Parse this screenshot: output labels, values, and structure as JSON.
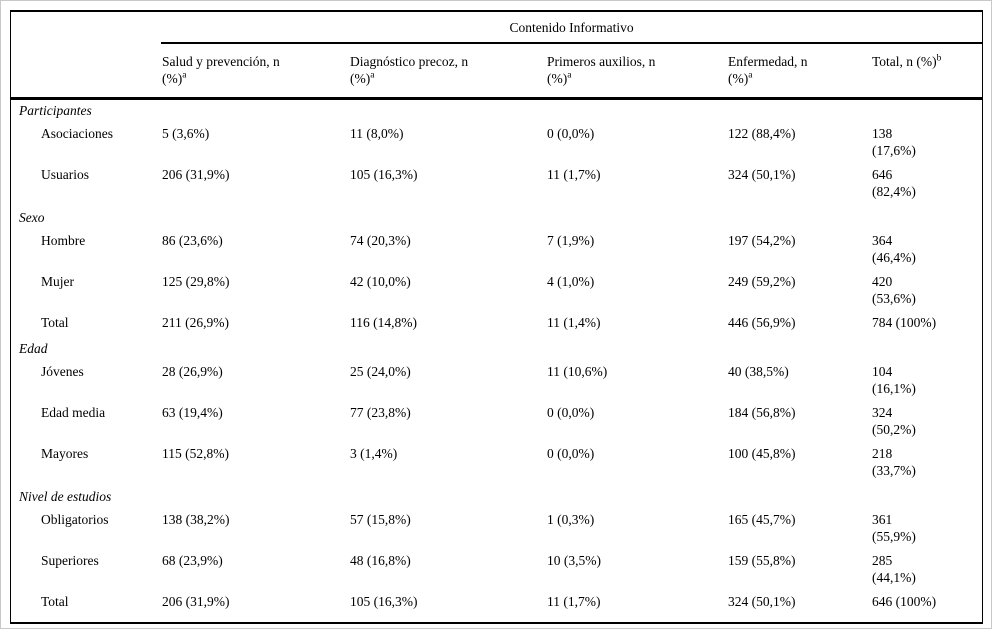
{
  "colors": {
    "text": "#000000",
    "background": "#ffffff",
    "rule": "#000000"
  },
  "table": {
    "spanner": "Contenido Informativo",
    "row_header_column": "",
    "columns": [
      {
        "line1": "Salud y prevención, n",
        "line2": "(%)",
        "sup": "a"
      },
      {
        "line1": "Diagnóstico precoz, n",
        "line2": "(%)",
        "sup": "a"
      },
      {
        "line1": "Primeros auxilios, n",
        "line2": "(%)",
        "sup": "a"
      },
      {
        "line1": "Enfermedad, n",
        "line2": "(%)",
        "sup": "a"
      },
      {
        "line1": "Total, n (%)",
        "line2": "",
        "sup": "b"
      }
    ],
    "sections": [
      {
        "title": "Participantes",
        "rows": [
          {
            "label": "Asociaciones",
            "values": [
              "5 (3,6%)",
              "11 (8,0%)",
              "0 (0,0%)",
              "122 (88,4%)"
            ],
            "total": "138\n(17,6%)"
          },
          {
            "label": "Usuarios",
            "values": [
              "206 (31,9%)",
              "105 (16,3%)",
              "11 (1,7%)",
              "324 (50,1%)"
            ],
            "total": "646\n(82,4%)"
          }
        ]
      },
      {
        "title": "Sexo",
        "rows": [
          {
            "label": "Hombre",
            "values": [
              "86 (23,6%)",
              "74 (20,3%)",
              "7 (1,9%)",
              "197 (54,2%)"
            ],
            "total": "364\n(46,4%)"
          },
          {
            "label": "Mujer",
            "values": [
              "125 (29,8%)",
              "42 (10,0%)",
              "4 (1,0%)",
              "249 (59,2%)"
            ],
            "total": "420\n(53,6%)"
          },
          {
            "label": "Total",
            "values": [
              "211 (26,9%)",
              "116 (14,8%)",
              "11 (1,4%)",
              "446 (56,9%)"
            ],
            "total": "784 (100%)"
          }
        ]
      },
      {
        "title": "Edad",
        "rows": [
          {
            "label": "Jóvenes",
            "values": [
              "28 (26,9%)",
              "25 (24,0%)",
              "11 (10,6%)",
              "40 (38,5%)"
            ],
            "total": "104\n(16,1%)"
          },
          {
            "label": "Edad media",
            "values": [
              "63 (19,4%)",
              "77 (23,8%)",
              "0 (0,0%)",
              "184 (56,8%)"
            ],
            "total": "324\n(50,2%)"
          },
          {
            "label": "Mayores",
            "values": [
              "115 (52,8%)",
              "3 (1,4%)",
              "0 (0,0%)",
              "100 (45,8%)"
            ],
            "total": "218\n(33,7%)"
          }
        ]
      },
      {
        "title": "Nivel de estudios",
        "rows": [
          {
            "label": "Obligatorios",
            "values": [
              "138 (38,2%)",
              "57 (15,8%)",
              "1 (0,3%)",
              "165 (45,7%)"
            ],
            "total": "361\n(55,9%)"
          },
          {
            "label": "Superiores",
            "values": [
              "68 (23,9%)",
              "48 (16,8%)",
              "10 (3,5%)",
              "159 (55,8%)"
            ],
            "total": "285\n(44,1%)"
          },
          {
            "label": "Total",
            "values": [
              "206 (31,9%)",
              "105 (16,3%)",
              "11 (1,7%)",
              "324 (50,1%)"
            ],
            "total": "646 (100%)"
          }
        ]
      }
    ]
  }
}
